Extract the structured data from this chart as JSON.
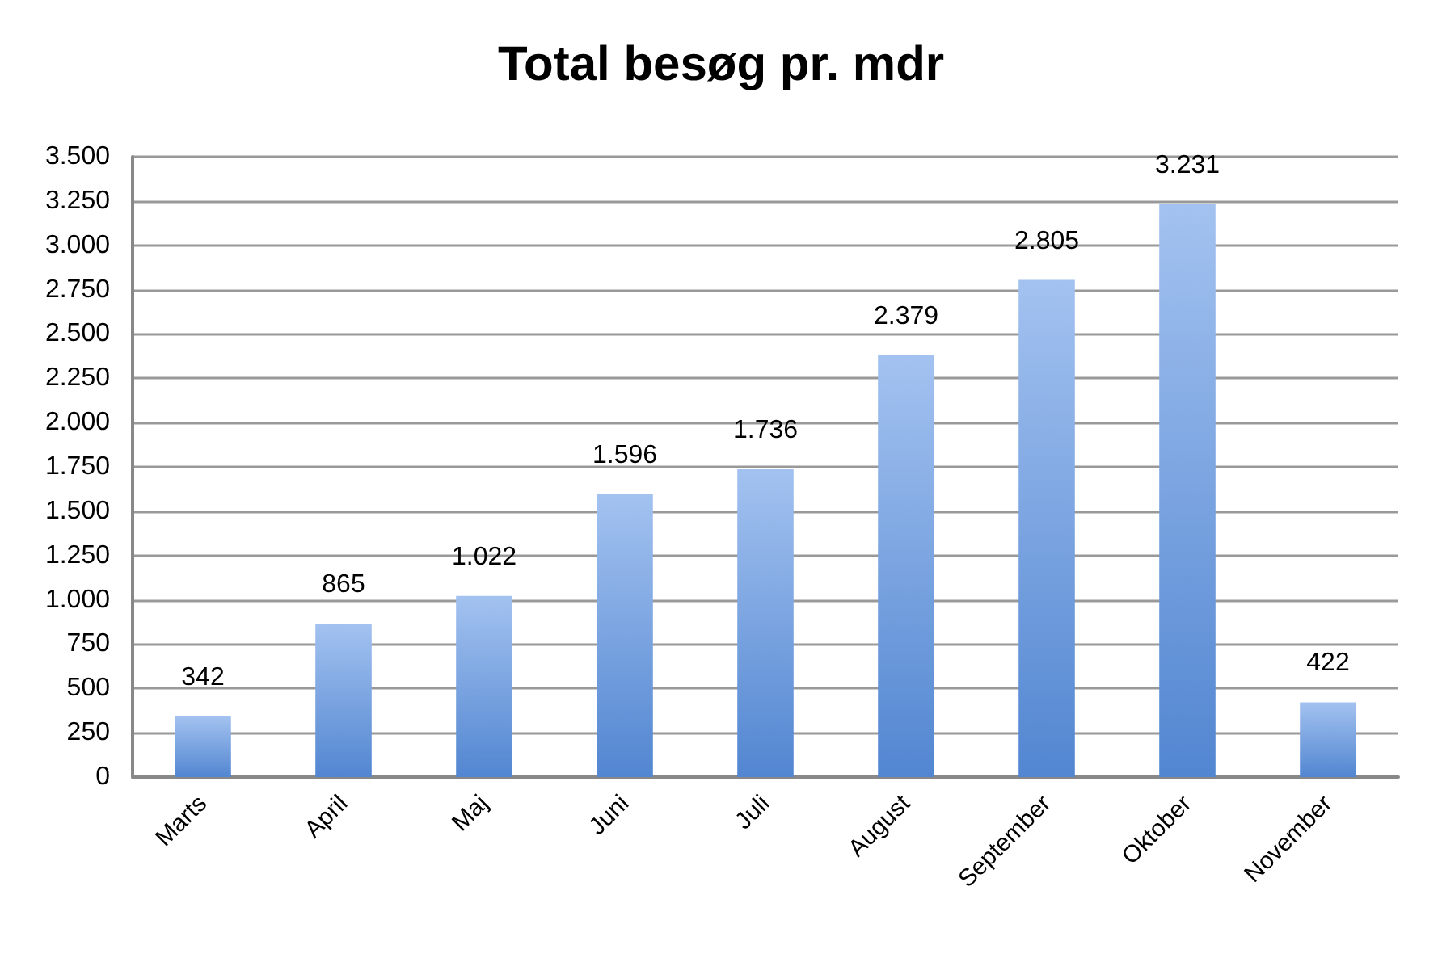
{
  "chart_data": {
    "type": "bar",
    "title": "Total besøg pr. mdr",
    "categories": [
      "Marts",
      "April",
      "Maj",
      "Juni",
      "Juli",
      "August",
      "September",
      "Oktober",
      "November"
    ],
    "values": [
      342,
      865,
      1022,
      1596,
      1736,
      2379,
      2805,
      3231,
      422
    ],
    "value_labels": [
      "342",
      "865",
      "1.022",
      "1.596",
      "1.736",
      "2.379",
      "2.805",
      "3.231",
      "422"
    ],
    "color": "#6a9de6",
    "ylim": [
      0,
      3500
    ],
    "yticks": [
      0,
      {
        "value": 250,
        "label": "250"
      },
      {
        "value": 500,
        "label": "500"
      },
      {
        "value": 750,
        "label": "750"
      },
      {
        "value": 1000,
        "label": "1.000"
      },
      {
        "value": 1250,
        "label": "1.250"
      },
      {
        "value": 1500,
        "label": "1.500"
      },
      {
        "value": 1750,
        "label": "1.750"
      },
      {
        "value": 2000,
        "label": "2.000"
      },
      {
        "value": 2250,
        "label": "2.250"
      },
      {
        "value": 2500,
        "label": "2.500"
      },
      {
        "value": 2750,
        "label": "2.750"
      },
      {
        "value": 3000,
        "label": "3.000"
      },
      {
        "value": 3250,
        "label": "3.250"
      },
      {
        "value": 3500,
        "label": "3.500"
      }
    ],
    "grid": "y"
  }
}
